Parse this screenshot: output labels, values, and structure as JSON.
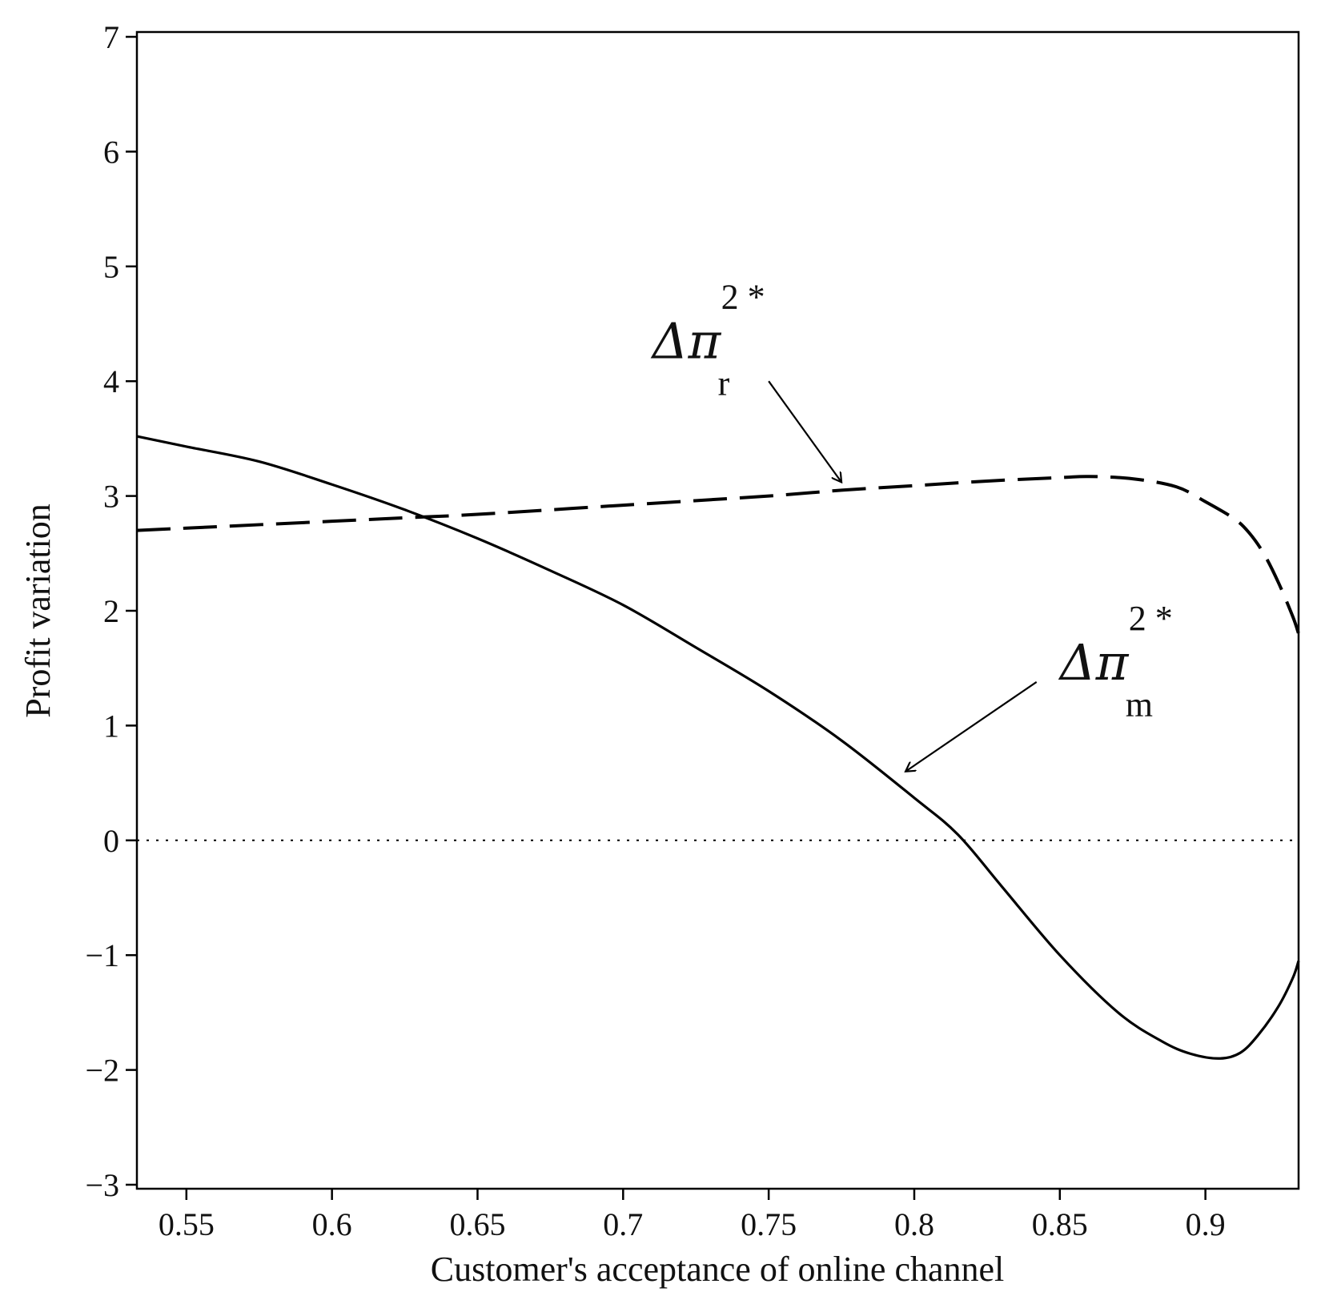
{
  "chart_data": {
    "type": "line",
    "title": "",
    "xlabel": "Customer's acceptance of online channel",
    "ylabel": "Profit variation",
    "xlim": [
      0.533,
      0.932
    ],
    "ylim": [
      -3,
      7
    ],
    "xticks": [
      0.55,
      0.6,
      0.65,
      0.7,
      0.75,
      0.8,
      0.85,
      0.9
    ],
    "xtick_labels": [
      "0.55",
      "0.6",
      "0.65",
      "0.7",
      "0.75",
      "0.8",
      "0.85",
      "0.9"
    ],
    "yticks": [
      -3,
      -2,
      -1,
      0,
      1,
      2,
      3,
      4,
      5,
      6,
      7
    ],
    "ytick_labels": [
      "−3",
      "−2",
      "−1",
      "0",
      "1",
      "2",
      "3",
      "4",
      "5",
      "6",
      "7"
    ],
    "grid": false,
    "reference_line": {
      "y": 0,
      "style": "dotted"
    },
    "series": [
      {
        "name": "Δπ m 2*",
        "style": "solid",
        "x": [
          0.533,
          0.55,
          0.575,
          0.6,
          0.625,
          0.65,
          0.675,
          0.7,
          0.725,
          0.75,
          0.775,
          0.8,
          0.815,
          0.83,
          0.85,
          0.87,
          0.885,
          0.895,
          0.905,
          0.912,
          0.918,
          0.925,
          0.93,
          0.932
        ],
        "y": [
          3.52,
          3.43,
          3.3,
          3.1,
          2.88,
          2.63,
          2.35,
          2.05,
          1.68,
          1.3,
          0.87,
          0.37,
          0.05,
          -0.4,
          -1.0,
          -1.5,
          -1.75,
          -1.86,
          -1.9,
          -1.85,
          -1.7,
          -1.45,
          -1.2,
          -1.05
        ]
      },
      {
        "name": "Δπ r 2*",
        "style": "dashed",
        "x": [
          0.533,
          0.55,
          0.6,
          0.625,
          0.65,
          0.7,
          0.75,
          0.775,
          0.8,
          0.825,
          0.85,
          0.86,
          0.875,
          0.89,
          0.9,
          0.91,
          0.915,
          0.92,
          0.925,
          0.93,
          0.932
        ],
        "y": [
          2.7,
          2.72,
          2.78,
          2.81,
          2.84,
          2.92,
          3.0,
          3.05,
          3.09,
          3.13,
          3.16,
          3.17,
          3.15,
          3.08,
          2.95,
          2.8,
          2.68,
          2.5,
          2.25,
          1.95,
          1.8
        ]
      }
    ],
    "annotations": [
      {
        "label_main": "Δπ",
        "label_sub": "r",
        "label_sup": "2 *",
        "text_x": 0.71,
        "text_y": 4.2,
        "arrow_from": [
          0.75,
          4.0
        ],
        "arrow_to": [
          0.775,
          3.12
        ]
      },
      {
        "label_main": "Δπ",
        "label_sub": "m",
        "label_sup": "2 *",
        "text_x": 0.85,
        "text_y": 1.4,
        "arrow_from": [
          0.842,
          1.38
        ],
        "arrow_to": [
          0.797,
          0.6
        ]
      }
    ]
  }
}
